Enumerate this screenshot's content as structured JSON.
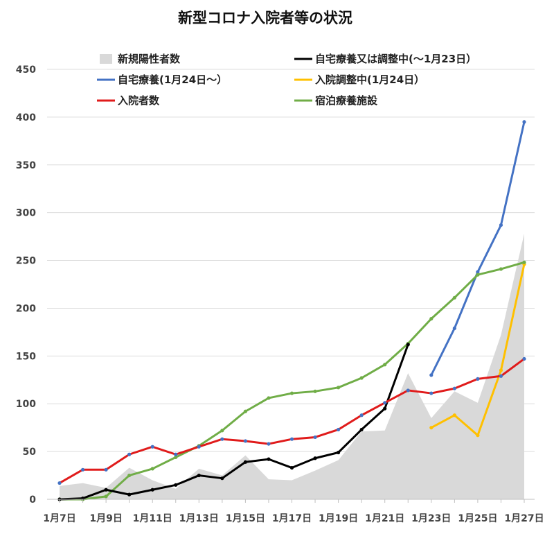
{
  "chart_data": {
    "type": "line",
    "title": "新型コロナ入院者等の状況",
    "ylim": [
      0,
      450
    ],
    "yticks": [
      0,
      50,
      100,
      150,
      200,
      250,
      300,
      350,
      400,
      450
    ],
    "grid": true,
    "legend_position": "top",
    "categories": [
      "1月7日",
      "1月8日",
      "1月9日",
      "1月10日",
      "1月11日",
      "1月12日",
      "1月13日",
      "1月14日",
      "1月15日",
      "1月16日",
      "1月17日",
      "1月18日",
      "1月19日",
      "1月20日",
      "1月21日",
      "1月22日",
      "1月23日",
      "1月24日",
      "1月25日",
      "1月26日",
      "1月27日"
    ],
    "xtick_labels": [
      "1月7日",
      "",
      "1月9日",
      "",
      "1月11日",
      "",
      "1月13日",
      "",
      "1月15日",
      "",
      "1月17日",
      "",
      "1月19日",
      "",
      "1月21日",
      "",
      "1月23日",
      "",
      "1月25日",
      "",
      "1月27日"
    ],
    "series": [
      {
        "name": "新規陽性者数",
        "kind": "area",
        "color": "#d9d9d9",
        "values": [
          14,
          17,
          12,
          33,
          20,
          11,
          32,
          25,
          46,
          21,
          20,
          30,
          41,
          71,
          72,
          132,
          85,
          113,
          101,
          172,
          278
        ]
      },
      {
        "name": "自宅療養又は調整中(〜1月23日）",
        "kind": "line",
        "color": "#000000",
        "values": [
          0,
          1,
          10,
          5,
          10,
          15,
          25,
          22,
          39,
          42,
          33,
          43,
          49,
          73,
          95,
          162,
          null,
          null,
          null,
          null,
          null
        ]
      },
      {
        "name": "自宅療養(1月24日〜）",
        "kind": "line",
        "color": "#4472c4",
        "values": [
          null,
          null,
          null,
          null,
          null,
          null,
          null,
          null,
          null,
          null,
          null,
          null,
          null,
          null,
          null,
          null,
          130,
          179,
          238,
          287,
          395
        ]
      },
      {
        "name": "入院調整中(1月24日）",
        "kind": "line",
        "color": "#ffc000",
        "values": [
          null,
          null,
          null,
          null,
          null,
          null,
          null,
          null,
          null,
          null,
          null,
          null,
          null,
          null,
          null,
          null,
          75,
          88,
          67,
          135,
          246
        ]
      },
      {
        "name": "入院者数",
        "kind": "line",
        "color": "#e01b1b",
        "values": [
          17,
          31,
          31,
          47,
          55,
          47,
          55,
          63,
          61,
          58,
          63,
          65,
          73,
          88,
          101,
          114,
          111,
          116,
          126,
          129,
          147
        ]
      },
      {
        "name": "宿泊療養施設",
        "kind": "line",
        "color": "#70ad47",
        "values": [
          0,
          0,
          3,
          25,
          32,
          44,
          56,
          72,
          92,
          106,
          111,
          113,
          117,
          127,
          141,
          163,
          189,
          211,
          235,
          241,
          248
        ]
      }
    ],
    "legend_order": [
      0,
      1,
      2,
      3,
      4,
      5
    ]
  }
}
